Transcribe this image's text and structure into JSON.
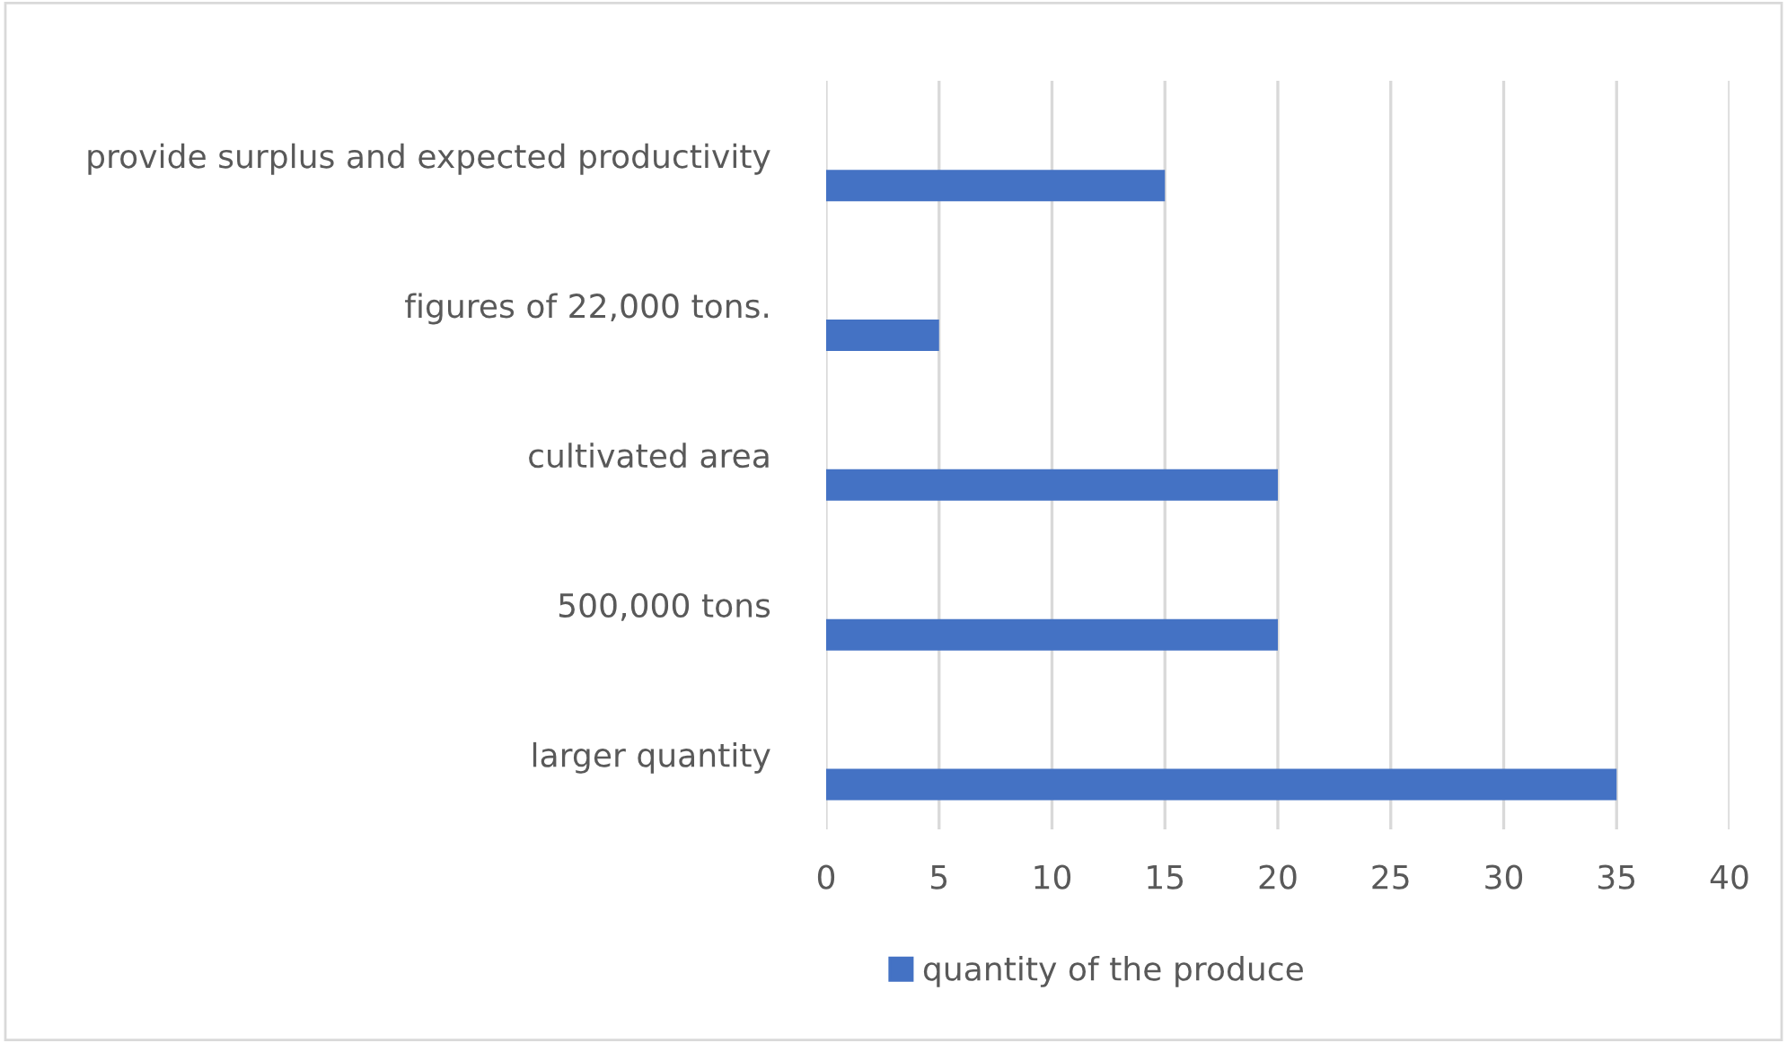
{
  "chart_data": {
    "type": "bar",
    "orientation": "horizontal",
    "categories": [
      "provide surplus and expected productivity",
      "figures of 22,000 tons.",
      "cultivated area",
      "500,000 tons",
      "larger quantity"
    ],
    "series": [
      {
        "name": "quantity of the produce",
        "color": "#4472c4",
        "values": [
          15,
          5,
          20,
          20,
          35
        ]
      }
    ],
    "xlim": [
      0,
      40
    ],
    "xticks": [
      0,
      5,
      10,
      15,
      20,
      25,
      30,
      35,
      40
    ],
    "grid": "x",
    "legend": "bottom"
  }
}
